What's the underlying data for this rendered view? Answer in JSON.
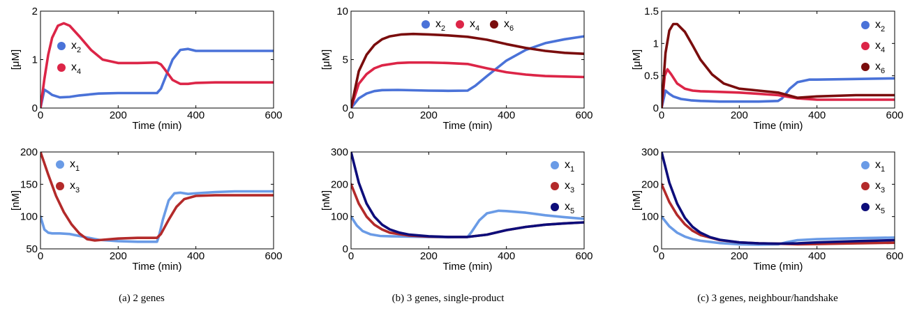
{
  "colors": {
    "x1": "#6a9be6",
    "x2": "#4a72d8",
    "x3": "#b32a2a",
    "x4": "#dc2547",
    "x5": "#0d0d7a",
    "x6": "#7a0d0d"
  },
  "captions": [
    "(a) 2 genes",
    "(b) 3 genes, single-product",
    "(c) 3 genes, neighbour/handshake"
  ],
  "chart_data": [
    {
      "type": "line",
      "xlabel": "Time (min)",
      "ylabel": "[μM]",
      "xlim": [
        0,
        600
      ],
      "ylim": [
        0,
        2
      ],
      "xticks": [
        0,
        200,
        400,
        600
      ],
      "yticks": [
        0,
        1,
        2
      ],
      "legend_placement": "left",
      "series": [
        {
          "name": "x2",
          "base": "x",
          "sub": "2",
          "color_key": "x2",
          "x": [
            0,
            10,
            20,
            30,
            50,
            75,
            100,
            150,
            200,
            250,
            300,
            310,
            320,
            340,
            360,
            380,
            400,
            450,
            500,
            600
          ],
          "y": [
            0,
            0.38,
            0.33,
            0.27,
            0.22,
            0.23,
            0.26,
            0.3,
            0.31,
            0.31,
            0.31,
            0.4,
            0.6,
            1.0,
            1.2,
            1.22,
            1.18,
            1.18,
            1.18,
            1.18
          ]
        },
        {
          "name": "x4",
          "base": "x",
          "sub": "4",
          "color_key": "x4",
          "x": [
            0,
            10,
            20,
            30,
            45,
            60,
            75,
            100,
            130,
            160,
            200,
            250,
            300,
            310,
            320,
            340,
            360,
            380,
            400,
            450,
            500,
            600
          ],
          "y": [
            0,
            0.6,
            1.1,
            1.45,
            1.7,
            1.75,
            1.7,
            1.48,
            1.2,
            1.0,
            0.93,
            0.93,
            0.94,
            0.9,
            0.8,
            0.58,
            0.5,
            0.5,
            0.52,
            0.53,
            0.53,
            0.53
          ]
        }
      ]
    },
    {
      "type": "line",
      "xlabel": "Time (min)",
      "ylabel": "[μM]",
      "xlim": [
        0,
        600
      ],
      "ylim": [
        0,
        10
      ],
      "xticks": [
        0,
        200,
        400,
        600
      ],
      "yticks": [
        0,
        5,
        10
      ],
      "legend_placement": "top",
      "series": [
        {
          "name": "x2",
          "base": "x",
          "sub": "2",
          "color_key": "x2",
          "x": [
            0,
            20,
            40,
            60,
            80,
            120,
            200,
            250,
            300,
            320,
            350,
            400,
            450,
            500,
            550,
            600
          ],
          "y": [
            0,
            1.0,
            1.5,
            1.75,
            1.85,
            1.87,
            1.8,
            1.78,
            1.8,
            2.3,
            3.3,
            4.9,
            6.0,
            6.7,
            7.1,
            7.4
          ]
        },
        {
          "name": "x4",
          "base": "x",
          "sub": "4",
          "color_key": "x4",
          "x": [
            0,
            20,
            40,
            60,
            80,
            120,
            150,
            200,
            250,
            300,
            350,
            400,
            450,
            500,
            550,
            600
          ],
          "y": [
            0,
            2.5,
            3.5,
            4.1,
            4.4,
            4.65,
            4.7,
            4.7,
            4.65,
            4.55,
            4.1,
            3.7,
            3.45,
            3.3,
            3.25,
            3.2
          ]
        },
        {
          "name": "x6",
          "base": "x",
          "sub": "6",
          "color_key": "x6",
          "x": [
            0,
            20,
            40,
            60,
            80,
            100,
            130,
            160,
            200,
            250,
            300,
            350,
            400,
            450,
            500,
            550,
            600
          ],
          "y": [
            0,
            3.8,
            5.5,
            6.5,
            7.1,
            7.4,
            7.6,
            7.65,
            7.6,
            7.5,
            7.35,
            7.05,
            6.6,
            6.2,
            5.9,
            5.7,
            5.6
          ]
        }
      ]
    },
    {
      "type": "line",
      "xlabel": "Time (min)",
      "ylabel": "[μM]",
      "xlim": [
        0,
        600
      ],
      "ylim": [
        0,
        1.5
      ],
      "xticks": [
        0,
        200,
        400,
        600
      ],
      "yticks": [
        0,
        0.5,
        1,
        1.5
      ],
      "legend_placement": "right",
      "series": [
        {
          "name": "x2",
          "base": "x",
          "sub": "2",
          "color_key": "x2",
          "x": [
            0,
            10,
            20,
            30,
            50,
            75,
            100,
            150,
            200,
            250,
            300,
            310,
            330,
            350,
            380,
            400,
            500,
            600
          ],
          "y": [
            0,
            0.27,
            0.22,
            0.18,
            0.14,
            0.12,
            0.11,
            0.1,
            0.1,
            0.1,
            0.11,
            0.15,
            0.3,
            0.4,
            0.44,
            0.44,
            0.45,
            0.46
          ]
        },
        {
          "name": "x4",
          "base": "x",
          "sub": "4",
          "color_key": "x4",
          "x": [
            0,
            8,
            15,
            25,
            40,
            60,
            80,
            100,
            150,
            200,
            250,
            300,
            350,
            400,
            500,
            600
          ],
          "y": [
            0,
            0.5,
            0.6,
            0.52,
            0.38,
            0.3,
            0.27,
            0.26,
            0.25,
            0.24,
            0.22,
            0.2,
            0.15,
            0.13,
            0.13,
            0.13
          ]
        },
        {
          "name": "x6",
          "base": "x",
          "sub": "6",
          "color_key": "x6",
          "x": [
            0,
            10,
            20,
            30,
            40,
            60,
            80,
            100,
            130,
            160,
            200,
            250,
            300,
            350,
            400,
            500,
            600
          ],
          "y": [
            0,
            0.85,
            1.2,
            1.3,
            1.3,
            1.18,
            0.97,
            0.75,
            0.52,
            0.38,
            0.3,
            0.27,
            0.24,
            0.16,
            0.18,
            0.2,
            0.2
          ]
        }
      ]
    },
    {
      "type": "line",
      "xlabel": "Time (min)",
      "ylabel": "[nM]",
      "xlim": [
        0,
        600
      ],
      "ylim": [
        50,
        200
      ],
      "xticks": [
        0,
        200,
        400,
        600
      ],
      "yticks": [
        50,
        100,
        150,
        200
      ],
      "legend_placement": "left",
      "series": [
        {
          "name": "x1",
          "base": "x",
          "sub": "1",
          "color_key": "x1",
          "x": [
            0,
            10,
            20,
            30,
            50,
            75,
            100,
            150,
            200,
            250,
            300,
            305,
            315,
            330,
            345,
            360,
            380,
            400,
            450,
            500,
            600
          ],
          "y": [
            100,
            80,
            75,
            74,
            74,
            73,
            70,
            64,
            62,
            61,
            61,
            70,
            95,
            125,
            136,
            137,
            135,
            136,
            138,
            139,
            139
          ]
        },
        {
          "name": "x3",
          "base": "x",
          "sub": "3",
          "color_key": "x3",
          "x": [
            0,
            20,
            40,
            60,
            80,
            100,
            120,
            140,
            160,
            200,
            250,
            300,
            310,
            330,
            350,
            370,
            400,
            450,
            500,
            600
          ],
          "y": [
            200,
            165,
            132,
            107,
            88,
            74,
            65,
            63,
            64,
            66,
            67,
            67,
            73,
            95,
            115,
            127,
            132,
            133,
            133,
            133
          ]
        }
      ]
    },
    {
      "type": "line",
      "xlabel": "Time (min)",
      "ylabel": "[nM]",
      "xlim": [
        0,
        600
      ],
      "ylim": [
        0,
        300
      ],
      "xticks": [
        0,
        200,
        400,
        600
      ],
      "yticks": [
        0,
        100,
        200,
        300
      ],
      "legend_placement": "right",
      "series": [
        {
          "name": "x1",
          "base": "x",
          "sub": "1",
          "color_key": "x1",
          "x": [
            0,
            15,
            30,
            50,
            75,
            100,
            150,
            200,
            250,
            300,
            310,
            330,
            350,
            380,
            400,
            450,
            500,
            550,
            600
          ],
          "y": [
            100,
            72,
            55,
            45,
            40,
            39,
            38,
            37,
            36,
            37,
            52,
            88,
            110,
            118,
            117,
            112,
            104,
            98,
            93
          ]
        },
        {
          "name": "x3",
          "base": "x",
          "sub": "3",
          "color_key": "x3",
          "x": [
            0,
            20,
            40,
            60,
            80,
            100,
            150,
            200,
            250,
            300,
            350,
            400,
            450,
            500,
            550,
            600
          ],
          "y": [
            200,
            140,
            100,
            75,
            60,
            50,
            41,
            38,
            37,
            37,
            44,
            58,
            68,
            75,
            79,
            82
          ]
        },
        {
          "name": "x5",
          "base": "x",
          "sub": "5",
          "color_key": "x5",
          "x": [
            0,
            20,
            40,
            60,
            80,
            100,
            125,
            150,
            200,
            250,
            300,
            350,
            400,
            450,
            500,
            550,
            600
          ],
          "y": [
            300,
            205,
            140,
            100,
            75,
            60,
            50,
            44,
            39,
            37,
            37,
            44,
            58,
            68,
            75,
            79,
            82
          ]
        }
      ]
    },
    {
      "type": "line",
      "xlabel": "Time (min)",
      "ylabel": "[nM]",
      "xlim": [
        0,
        600
      ],
      "ylim": [
        0,
        300
      ],
      "xticks": [
        0,
        200,
        400,
        600
      ],
      "yticks": [
        0,
        100,
        200,
        300
      ],
      "legend_placement": "right",
      "series": [
        {
          "name": "x1",
          "base": "x",
          "sub": "1",
          "color_key": "x1",
          "x": [
            0,
            20,
            40,
            60,
            80,
            100,
            150,
            200,
            250,
            300,
            320,
            350,
            400,
            500,
            600
          ],
          "y": [
            100,
            70,
            50,
            38,
            30,
            25,
            18,
            14,
            13,
            14,
            20,
            27,
            30,
            33,
            35
          ]
        },
        {
          "name": "x3",
          "base": "x",
          "sub": "3",
          "color_key": "x3",
          "x": [
            0,
            20,
            40,
            60,
            80,
            100,
            150,
            200,
            250,
            300,
            350,
            400,
            500,
            600
          ],
          "y": [
            200,
            145,
            105,
            76,
            56,
            43,
            27,
            20,
            17,
            16,
            14,
            15,
            17,
            19
          ]
        },
        {
          "name": "x5",
          "base": "x",
          "sub": "5",
          "color_key": "x5",
          "x": [
            0,
            20,
            40,
            60,
            80,
            100,
            125,
            150,
            200,
            250,
            300,
            350,
            400,
            500,
            600
          ],
          "y": [
            300,
            205,
            140,
            96,
            68,
            50,
            36,
            28,
            20,
            17,
            16,
            17,
            20,
            24,
            27
          ]
        }
      ]
    }
  ]
}
